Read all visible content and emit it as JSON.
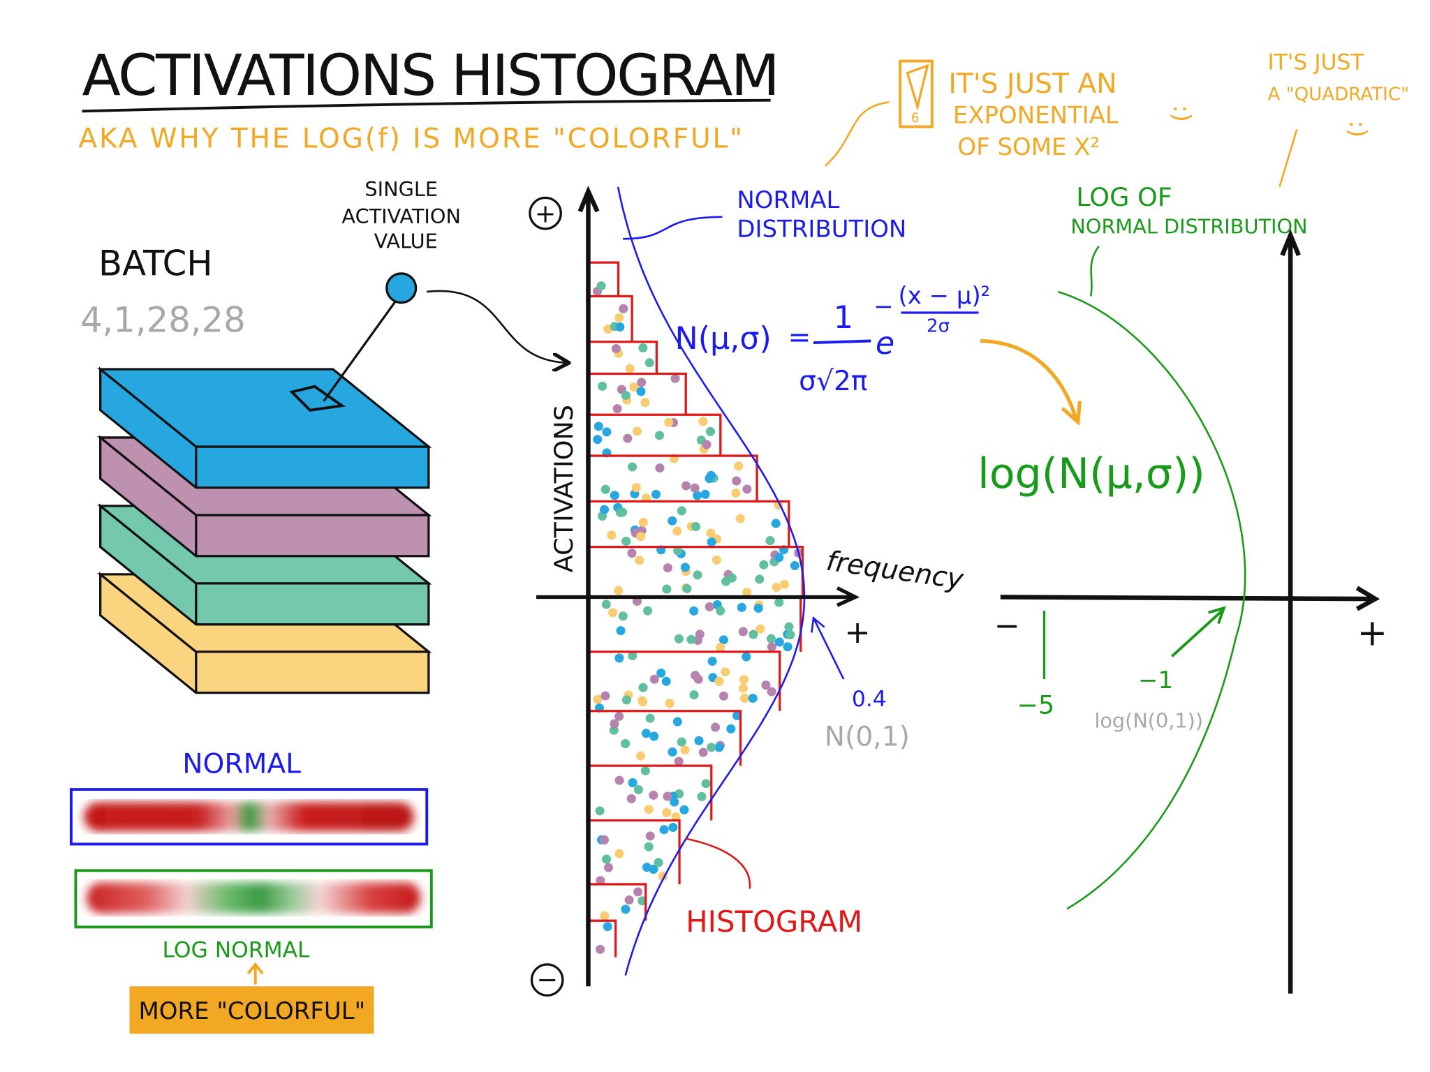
{
  "title": "ACTIVATIONS HISTOGRAM",
  "subtitle": "AKA WHY THE LOG(f) IS MORE \"COLORFUL\"",
  "batch": {
    "label": "BATCH",
    "shape": "4,1,28,28",
    "layer_colors": [
      "#26a7e0",
      "#bf91b0",
      "#74c8ae",
      "#fad47e"
    ]
  },
  "single_activation_label": [
    "SINGLE",
    "ACTIVATION",
    "VALUE"
  ],
  "color_bars": {
    "normal_label": "NORMAL",
    "log_normal_label": "LOG NORMAL",
    "more_colorful_label": "MORE \"COLORFUL\""
  },
  "histogram_plot": {
    "plus_symbol": "+",
    "minus_symbol": "−",
    "y_axis_label": "ACTIVATIONS",
    "x_axis_label": "frequency",
    "x_plus": "+",
    "peak_value": "0.4",
    "peak_dist": "N(0,1)",
    "histogram_label": "HISTOGRAM",
    "normal_dist_label": [
      "NORMAL",
      "DISTRIBUTION"
    ],
    "dot_colors": [
      "#26a7e0",
      "#b583ad",
      "#5fbf9e",
      "#f9cc72"
    ]
  },
  "formula": {
    "lhs": "N(μ,σ)",
    "eq": "=",
    "numerator": "1",
    "denominator": "σ√2π",
    "base": "e",
    "exp_sign": "−",
    "exp_numerator": "(x − μ)²",
    "exp_denominator": "2σ"
  },
  "note_exponential": {
    "badge_number": "6",
    "lines": [
      "IT'S JUST AN",
      "EXPONENTIAL",
      "OF SOME X²"
    ],
    "smiley": ":)"
  },
  "note_quadratic": {
    "lines": [
      "IT'S JUST",
      "A \"QUADRATIC\""
    ],
    "smiley": ":)"
  },
  "log_plot": {
    "title": [
      "LOG OF",
      "NORMAL DISTRIBUTION"
    ],
    "formula": "log(N(μ,σ))",
    "x_minus": "−",
    "x_plus": "+",
    "tick_minus5": "−5",
    "tick_minus1": "−1",
    "tick_minus1_dist": "log(N(0,1))"
  },
  "colors": {
    "orange": "#f3a823",
    "blue": "#1b1bf0",
    "green": "#1a9a1a",
    "red": "#e01818",
    "gray": "#a8a8a8"
  }
}
